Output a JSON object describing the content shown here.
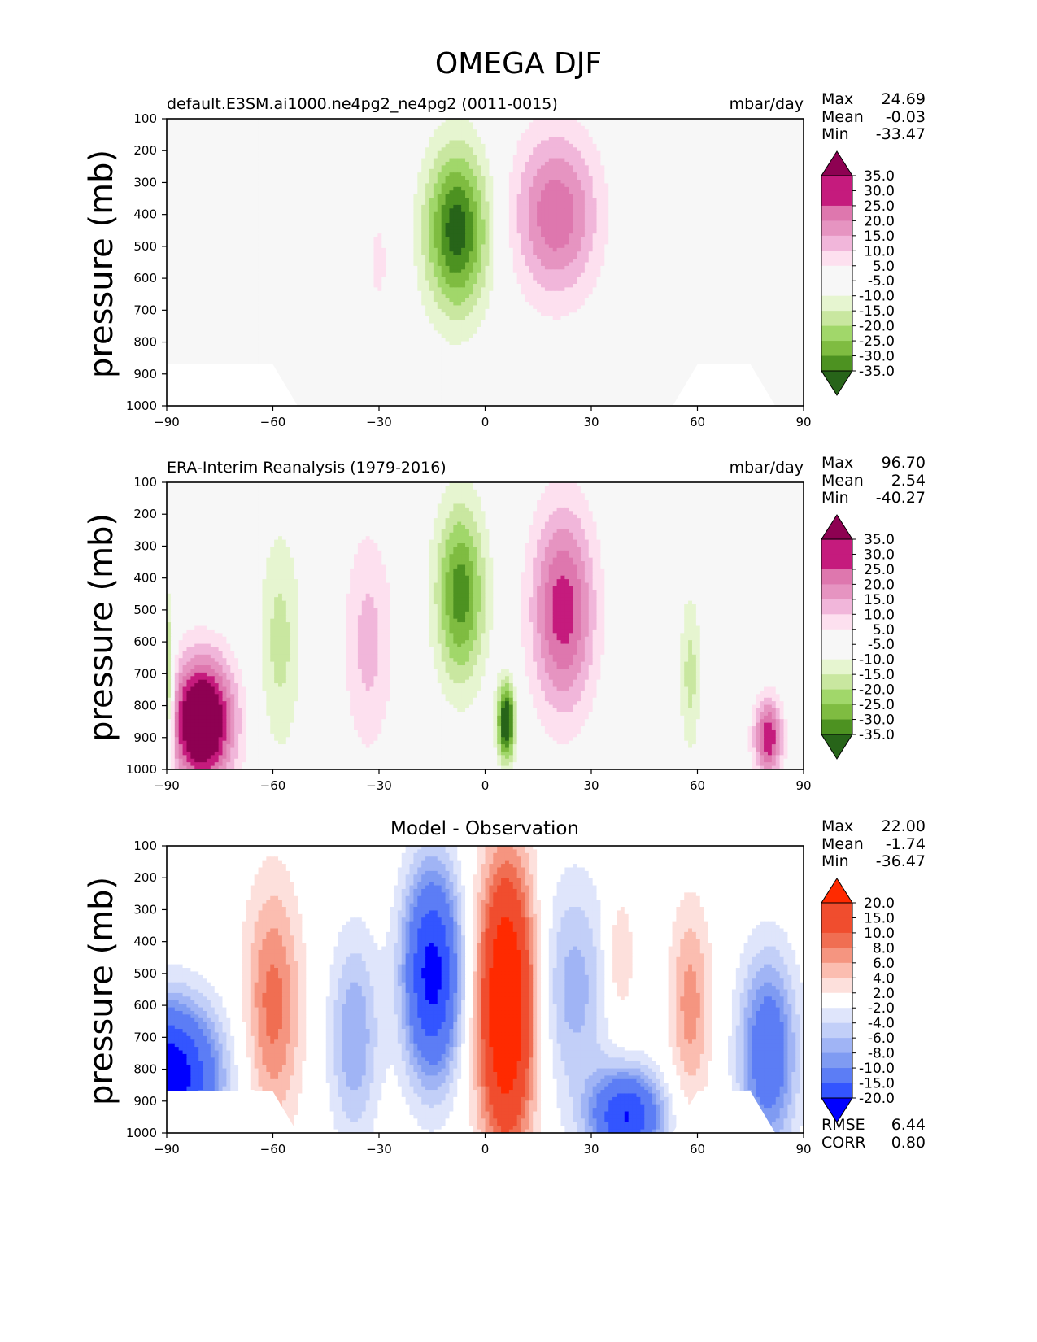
{
  "figure_title": "OMEGA DJF",
  "axis": {
    "ylabel": "pressure (mb)",
    "yticks": [
      "100",
      "200",
      "300",
      "400",
      "500",
      "600",
      "700",
      "800",
      "900",
      "1000"
    ],
    "xticks": [
      "−90",
      "−60",
      "−30",
      "0",
      "30",
      "60",
      "90"
    ]
  },
  "panels": [
    {
      "title_left": "default.E3SM.ai1000.ne4pg2_ne4pg2 (0011-0015)",
      "title_right": "mbar/day",
      "title_center": "",
      "stats": [
        {
          "label": "Max",
          "value": "24.69"
        },
        {
          "label": "Mean",
          "value": "-0.03"
        },
        {
          "label": "Min",
          "value": "-33.47"
        }
      ],
      "colorbar_labels": [
        "35.0",
        "30.0",
        "25.0",
        "20.0",
        "15.0",
        "10.0",
        "5.0",
        "-5.0",
        "-10.0",
        "-15.0",
        "-20.0",
        "-25.0",
        "-30.0",
        "-35.0"
      ]
    },
    {
      "title_left": "ERA-Interim Reanalysis (1979-2016)",
      "title_right": "mbar/day",
      "title_center": "",
      "stats": [
        {
          "label": "Max",
          "value": "96.70"
        },
        {
          "label": "Mean",
          "value": "2.54"
        },
        {
          "label": "Min",
          "value": "-40.27"
        }
      ],
      "colorbar_labels": [
        "35.0",
        "30.0",
        "25.0",
        "20.0",
        "15.0",
        "10.0",
        "5.0",
        "-5.0",
        "-10.0",
        "-15.0",
        "-20.0",
        "-25.0",
        "-30.0",
        "-35.0"
      ]
    },
    {
      "title_left": "",
      "title_right": "",
      "title_center": "Model - Observation",
      "stats": [
        {
          "label": "Max",
          "value": "22.00"
        },
        {
          "label": "Mean",
          "value": "-1.74"
        },
        {
          "label": "Min",
          "value": "-36.47"
        }
      ],
      "extra_stats": [
        {
          "label": "RMSE",
          "value": "6.44"
        },
        {
          "label": "CORR",
          "value": "0.80"
        }
      ],
      "colorbar_labels": [
        "20.0",
        "15.0",
        "10.0",
        "8.0",
        "6.0",
        "4.0",
        "2.0",
        "-2.0",
        "-4.0",
        "-6.0",
        "-8.0",
        "-10.0",
        "-15.0",
        "-20.0"
      ]
    }
  ],
  "colors": {
    "test_ref_colormap": [
      "#276419",
      "#4d9221",
      "#7fbc41",
      "#a1d76a",
      "#c9e7a0",
      "#e6f5d0",
      "#f7f7f7",
      "#fde0ef",
      "#f1b6da",
      "#e694c1",
      "#de77ae",
      "#c51b7d",
      "#8e0152"
    ],
    "diff_colormap": [
      "#0000ff",
      "#3355ff",
      "#5c7df5",
      "#7f9bf2",
      "#a0b4f5",
      "#c2cff8",
      "#dfe5fb",
      "#ffffff",
      "#fde0dc",
      "#fbbdb0",
      "#f59580",
      "#f06e52",
      "#f04d2e",
      "#ff2a00"
    ]
  },
  "chart_data": [
    {
      "type": "heatmap",
      "title": "default.E3SM.ai1000.ne4pg2_ne4pg2 (0011-0015)",
      "units": "mbar/day",
      "xlim": [
        -90,
        90
      ],
      "ylim": [
        1000,
        100
      ],
      "ylabel": "pressure (mb)",
      "levels": [
        -35,
        -30,
        -25,
        -20,
        -15,
        -10,
        -5,
        5,
        10,
        15,
        20,
        25,
        30,
        35
      ],
      "features": [
        {
          "lat": -8,
          "pressure": 450,
          "value": -33,
          "lat_width": 9,
          "p_width": 260
        },
        {
          "lat": -30,
          "pressure": 550,
          "value": 6,
          "lat_width": 4,
          "p_width": 220
        },
        {
          "lat": 20,
          "pressure": 400,
          "value": 24,
          "lat_width": 12,
          "p_width": 260
        }
      ]
    },
    {
      "type": "heatmap",
      "title": "ERA-Interim Reanalysis (1979-2016)",
      "units": "mbar/day",
      "xlim": [
        -90,
        90
      ],
      "ylim": [
        1000,
        100
      ],
      "ylabel": "pressure (mb)",
      "levels": [
        -35,
        -30,
        -25,
        -20,
        -15,
        -10,
        -5,
        5,
        10,
        15,
        20,
        25,
        30,
        35
      ],
      "features": [
        {
          "lat": -80,
          "pressure": 850,
          "value": 45,
          "lat_width": 9,
          "p_width": 200
        },
        {
          "lat": -90,
          "pressure": 750,
          "value": -25,
          "lat_width": 2,
          "p_width": 250
        },
        {
          "lat": -58,
          "pressure": 600,
          "value": -12,
          "lat_width": 6,
          "p_width": 350
        },
        {
          "lat": -33,
          "pressure": 600,
          "value": 12,
          "lat_width": 7,
          "p_width": 350
        },
        {
          "lat": -7,
          "pressure": 450,
          "value": -28,
          "lat_width": 7,
          "p_width": 280
        },
        {
          "lat": 6,
          "pressure": 850,
          "value": -40,
          "lat_width": 2.5,
          "p_width": 120
        },
        {
          "lat": 22,
          "pressure": 500,
          "value": 28,
          "lat_width": 9,
          "p_width": 320
        },
        {
          "lat": 58,
          "pressure": 700,
          "value": -12,
          "lat_width": 3,
          "p_width": 250
        },
        {
          "lat": 80,
          "pressure": 900,
          "value": 30,
          "lat_width": 4,
          "p_width": 120
        }
      ]
    },
    {
      "type": "heatmap",
      "title": "Model - Observation",
      "xlim": [
        -90,
        90
      ],
      "ylim": [
        1000,
        100
      ],
      "ylabel": "pressure (mb)",
      "levels": [
        -20,
        -15,
        -10,
        -8,
        -6,
        -4,
        -2,
        2,
        4,
        6,
        8,
        10,
        15,
        20
      ],
      "features": [
        {
          "lat": -90,
          "pressure": 820,
          "value": -25,
          "lat_width": 14,
          "p_width": 220
        },
        {
          "lat": -60,
          "pressure": 600,
          "value": 9,
          "lat_width": 8,
          "p_width": 380
        },
        {
          "lat": -37,
          "pressure": 700,
          "value": -8,
          "lat_width": 7,
          "p_width": 320
        },
        {
          "lat": -15,
          "pressure": 500,
          "value": -22,
          "lat_width": 8,
          "p_width": 320
        },
        {
          "lat": 6,
          "pressure": 600,
          "value": 22,
          "lat_width": 8,
          "p_width": 450
        },
        {
          "lat": 25,
          "pressure": 550,
          "value": -7,
          "lat_width": 10,
          "p_width": 350
        },
        {
          "lat": 40,
          "pressure": 950,
          "value": -20,
          "lat_width": 10,
          "p_width": 140
        },
        {
          "lat": 38,
          "pressure": 450,
          "value": 5,
          "lat_width": 4,
          "p_width": 200
        },
        {
          "lat": 58,
          "pressure": 600,
          "value": 7,
          "lat_width": 6,
          "p_width": 320
        },
        {
          "lat": 80,
          "pressure": 750,
          "value": -14,
          "lat_width": 8,
          "p_width": 300
        }
      ]
    }
  ]
}
